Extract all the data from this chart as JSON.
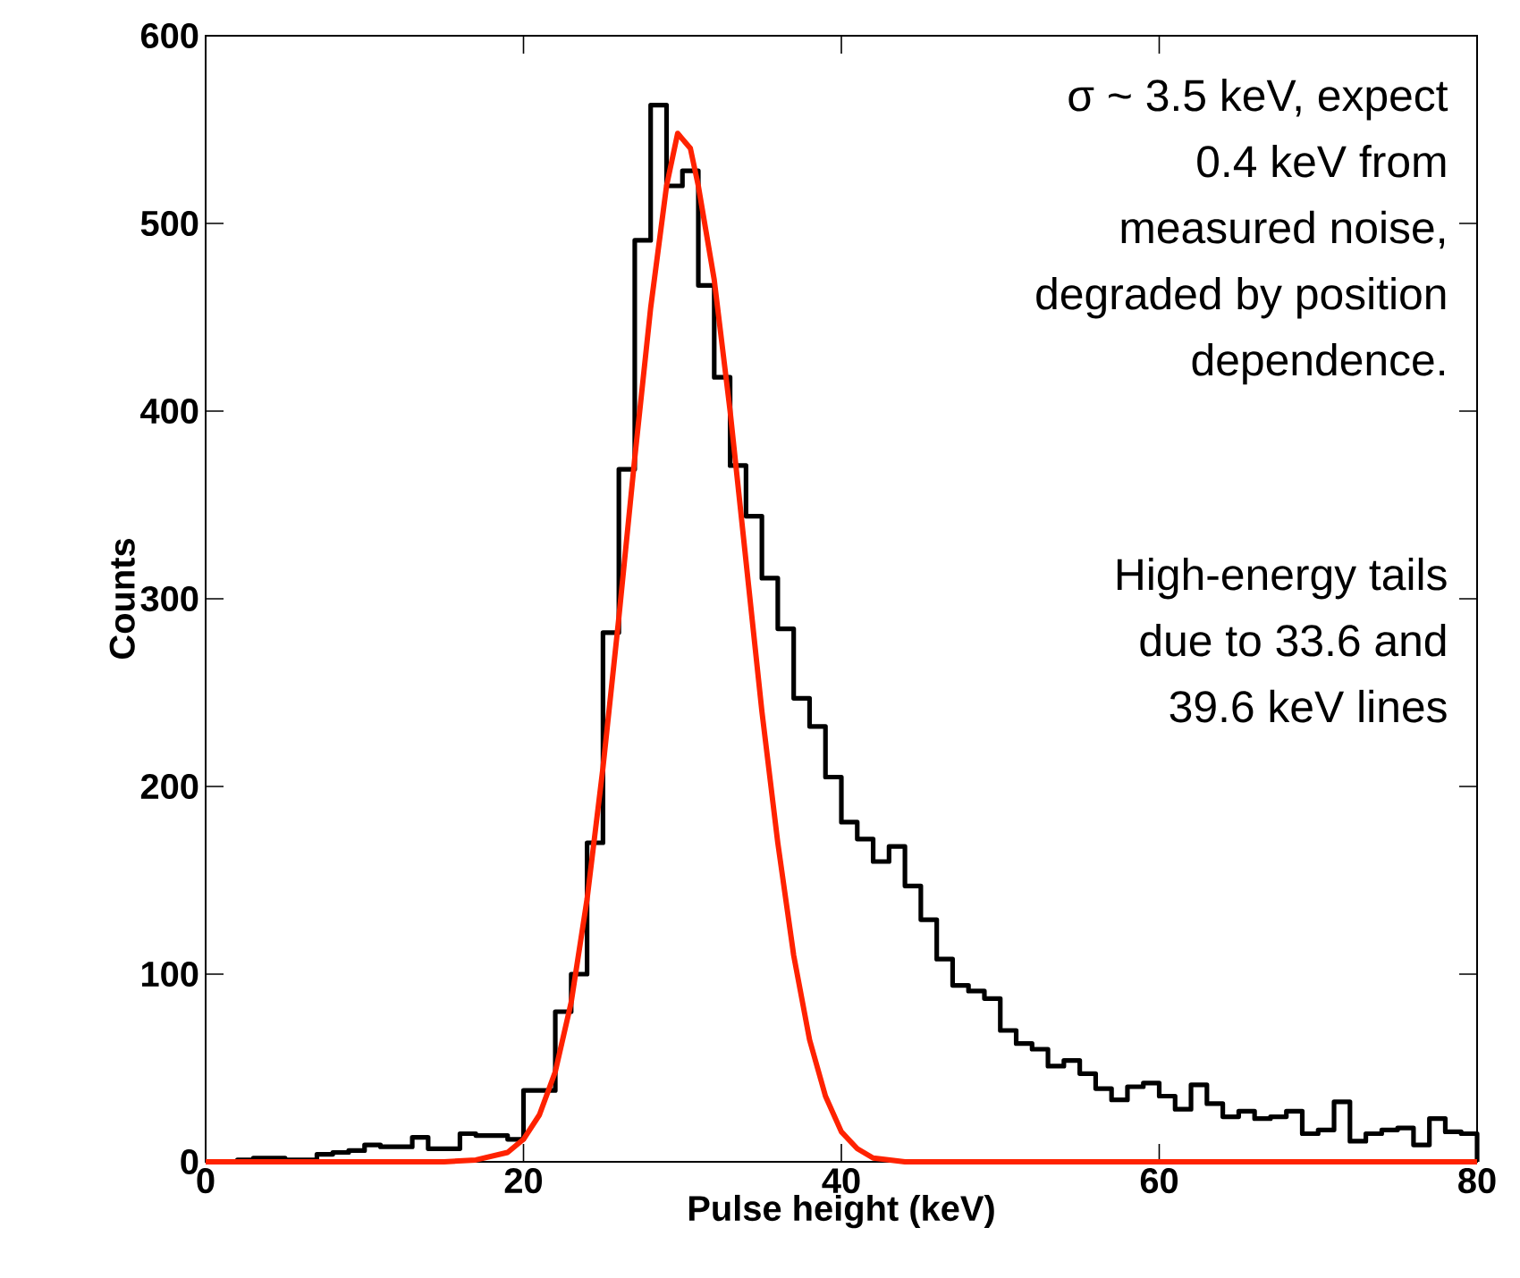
{
  "chart_data": {
    "type": "histogram",
    "xlabel": "Pulse height (keV)",
    "ylabel": "Counts",
    "xlim": [
      0,
      80
    ],
    "ylim": [
      0,
      600
    ],
    "xticks": [
      0,
      20,
      40,
      60,
      80
    ],
    "yticks": [
      0,
      100,
      200,
      300,
      400,
      500,
      600
    ],
    "grid": false,
    "series": [
      {
        "color": "#000000",
        "bins": [
          0,
          1,
          2,
          3,
          4,
          5,
          6,
          7,
          8,
          9,
          10,
          11,
          12,
          13,
          14,
          15,
          16,
          17,
          18,
          19,
          20,
          21,
          22,
          23,
          24,
          25,
          26,
          27,
          28,
          29,
          30,
          31,
          32,
          33,
          34,
          35,
          36,
          37,
          38,
          39,
          40,
          41,
          42,
          43,
          44,
          45,
          46,
          47,
          48,
          49,
          50,
          51,
          52,
          53,
          54,
          55,
          56,
          57,
          58,
          59,
          60,
          61,
          62,
          63,
          64,
          65,
          66,
          67,
          68,
          69,
          70,
          71,
          72,
          73,
          74,
          75,
          76,
          77,
          78,
          79,
          80
        ],
        "values": [
          0,
          0,
          1,
          2,
          2,
          1,
          1,
          4,
          5,
          6,
          9,
          8,
          8,
          13,
          7,
          7,
          15,
          14,
          14,
          12,
          38,
          38,
          80,
          100,
          170,
          282,
          369,
          491,
          563,
          520,
          528,
          467,
          418,
          371,
          344,
          311,
          284,
          247,
          232,
          205,
          181,
          172,
          160,
          168,
          147,
          129,
          108,
          94,
          91,
          87,
          70,
          63,
          60,
          51,
          54,
          47,
          39,
          33,
          40,
          42,
          35,
          28,
          41,
          31,
          24,
          27,
          23,
          24,
          27,
          15,
          17,
          32,
          11,
          15,
          17,
          18,
          9,
          23,
          16,
          15
        ]
      },
      {
        "type": "line",
        "color": "#ff2200",
        "x": [
          0,
          15,
          17,
          19,
          20,
          21,
          22,
          23,
          24,
          25,
          26,
          27,
          28,
          29,
          29.7,
          30.5,
          31,
          32,
          33,
          34,
          35,
          36,
          37,
          38,
          39,
          40,
          41,
          42,
          44,
          80
        ],
        "values": [
          0,
          0,
          1,
          5,
          12,
          25,
          48,
          85,
          140,
          210,
          290,
          375,
          455,
          520,
          548,
          540,
          520,
          470,
          400,
          320,
          240,
          170,
          110,
          65,
          35,
          16,
          7,
          2,
          0,
          0
        ]
      }
    ],
    "annotations": [
      "σ ~ 3.5 keV,  expect",
      "0.4 keV from",
      "measured noise,",
      "degraded by position",
      "dependence.",
      "High-energy tails",
      "due to 33.6 and",
      "39.6 keV lines"
    ]
  }
}
